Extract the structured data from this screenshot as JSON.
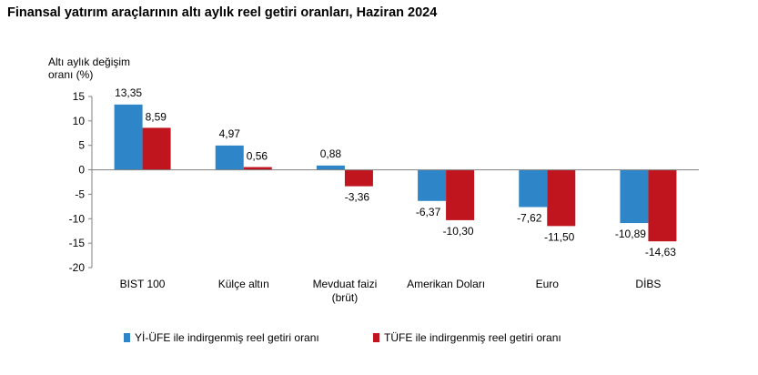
{
  "title": "Finansal yatırım araçlarının altı aylık reel getiri oranları, Haziran 2024",
  "colors": {
    "series1": "#2e86c9",
    "series2": "#c0141e",
    "axis": "#808080"
  },
  "chart_data": {
    "type": "bar",
    "title": "Finansal yatırım araçlarının altı aylık reel getiri oranları, Haziran 2024",
    "ylabel_lines": [
      "Altı aylık değişim",
      "oranı (%)"
    ],
    "xlabel": "",
    "ylim": [
      -20,
      15
    ],
    "yticks": [
      15,
      10,
      5,
      0,
      -5,
      -10,
      -15,
      -20
    ],
    "categories": [
      [
        "BIST 100"
      ],
      [
        "Külçe altın"
      ],
      [
        "Mevduat faizi",
        "(brüt)"
      ],
      [
        "Amerikan Doları"
      ],
      [
        "Euro"
      ],
      [
        "DİBS"
      ]
    ],
    "series": [
      {
        "name": "Yİ-ÜFE ile indirgenmiş reel getiri oranı",
        "values": [
          13.35,
          4.97,
          0.88,
          -6.37,
          -7.62,
          -10.89
        ],
        "labels": [
          "13,35",
          "4,97",
          "0,88",
          "-6,37",
          "-7,62",
          "-10,89"
        ]
      },
      {
        "name": "TÜFE ile indirgenmiş reel getiri oranı",
        "values": [
          8.59,
          0.56,
          -3.36,
          -10.3,
          -11.5,
          -14.63
        ],
        "labels": [
          "8,59",
          "0,56",
          "-3,36",
          "-10,30",
          "-11,50",
          "-14,63"
        ]
      }
    ],
    "legend_position": "bottom",
    "grid": false
  }
}
